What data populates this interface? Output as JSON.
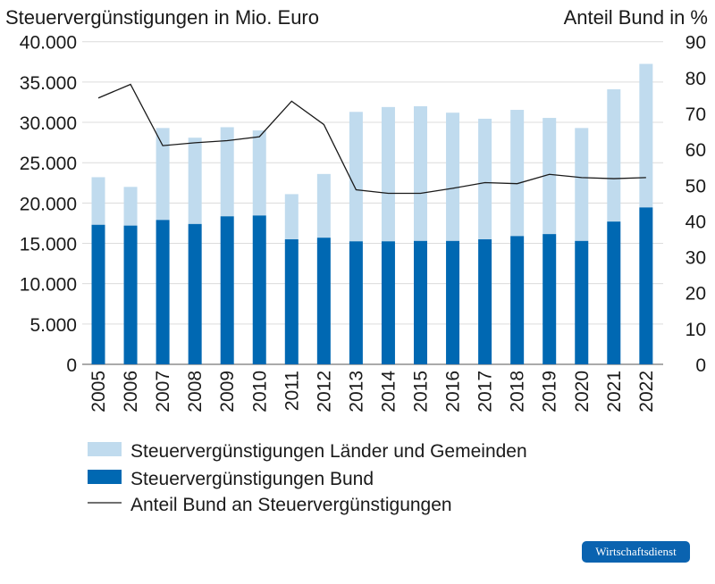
{
  "chart_data": {
    "type": "bar",
    "stacked": true,
    "categories": [
      "2005",
      "2006",
      "2007",
      "2008",
      "2009",
      "2010",
      "2011",
      "2012",
      "2013",
      "2014",
      "2015",
      "2016",
      "2017",
      "2018",
      "2019",
      "2020",
      "2021",
      "2022"
    ],
    "ylabel_left": "Steuervergünstigungen in Mio. Euro",
    "ylabel_right": "Anteil Bund in %",
    "ylim_left": [
      0,
      40000
    ],
    "ylim_right": [
      0,
      90
    ],
    "yticks_left": [
      "0",
      "5.000",
      "10.000",
      "15.000",
      "20.000",
      "25.000",
      "30.000",
      "35.000",
      "40.000"
    ],
    "yticks_right": [
      "0",
      "10",
      "20",
      "30",
      "40",
      "50",
      "60",
      "70",
      "80",
      "90"
    ],
    "grid": true,
    "legend_position": "bottom",
    "series": [
      {
        "name": "Steuervergünstigungen Länder und Gemeinden",
        "type": "bar",
        "color": "#c0dbee",
        "values": [
          5900,
          4800,
          11400,
          10700,
          11050,
          10550,
          5600,
          7900,
          16050,
          16650,
          16700,
          15900,
          14950,
          15650,
          14400,
          14000,
          16400,
          17800
        ]
      },
      {
        "name": "Steuervergünstigungen Bund",
        "type": "bar",
        "color": "#0068b2",
        "values": [
          17300,
          17200,
          17900,
          17400,
          18350,
          18450,
          15500,
          15700,
          15250,
          15250,
          15300,
          15300,
          15500,
          15900,
          16150,
          15300,
          17700,
          19450
        ]
      },
      {
        "name": "Anteil Bund an Steuervergünstigungen",
        "type": "line",
        "axis": "right",
        "color": "#1a1a1a",
        "values": [
          74.3,
          78.1,
          61.0,
          61.8,
          62.4,
          63.5,
          73.4,
          66.9,
          48.7,
          47.7,
          47.7,
          49.1,
          50.7,
          50.4,
          53.0,
          52.1,
          51.8,
          52.1
        ]
      }
    ]
  },
  "logo": "Wirtschaftsdienst"
}
